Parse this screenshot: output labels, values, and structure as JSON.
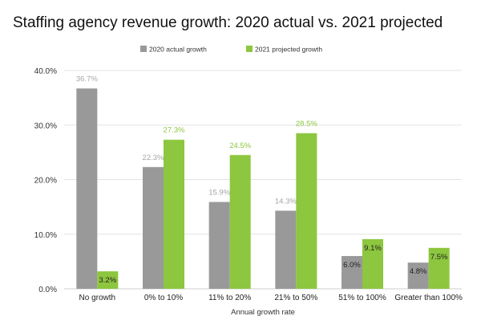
{
  "chart_data": {
    "type": "bar",
    "title": "Staffing agency revenue growth: 2020 actual vs. 2021 projected",
    "xlabel": "Annual growth rate",
    "ylabel": "",
    "categories": [
      "No growth",
      "0% to 10%",
      "11% to 20%",
      "21% to 50%",
      "51% to 100%",
      "Greater than 100%"
    ],
    "series": [
      {
        "name": "2020 actual growth",
        "color": "#999999",
        "values": [
          36.7,
          22.3,
          15.9,
          14.3,
          6.0,
          4.8
        ],
        "labels": [
          "36.7%",
          "22.3%",
          "15.9%",
          "14.3%",
          "6.0%",
          "4.8%"
        ]
      },
      {
        "name": "2021 projected growth",
        "color": "#8dc63f",
        "values": [
          3.2,
          27.3,
          24.5,
          28.5,
          9.1,
          7.5
        ],
        "labels": [
          "3.2%",
          "27.3%",
          "24.5%",
          "28.5%",
          "9.1%",
          "7.5%"
        ]
      }
    ],
    "ylim": [
      0,
      40
    ],
    "yticks": [
      0,
      10,
      20,
      30,
      40
    ],
    "ytick_labels": [
      "0.0%",
      "10.0%",
      "20.0%",
      "30.0%",
      "40.0%"
    ],
    "legend_position": "top-center",
    "grid": true
  }
}
